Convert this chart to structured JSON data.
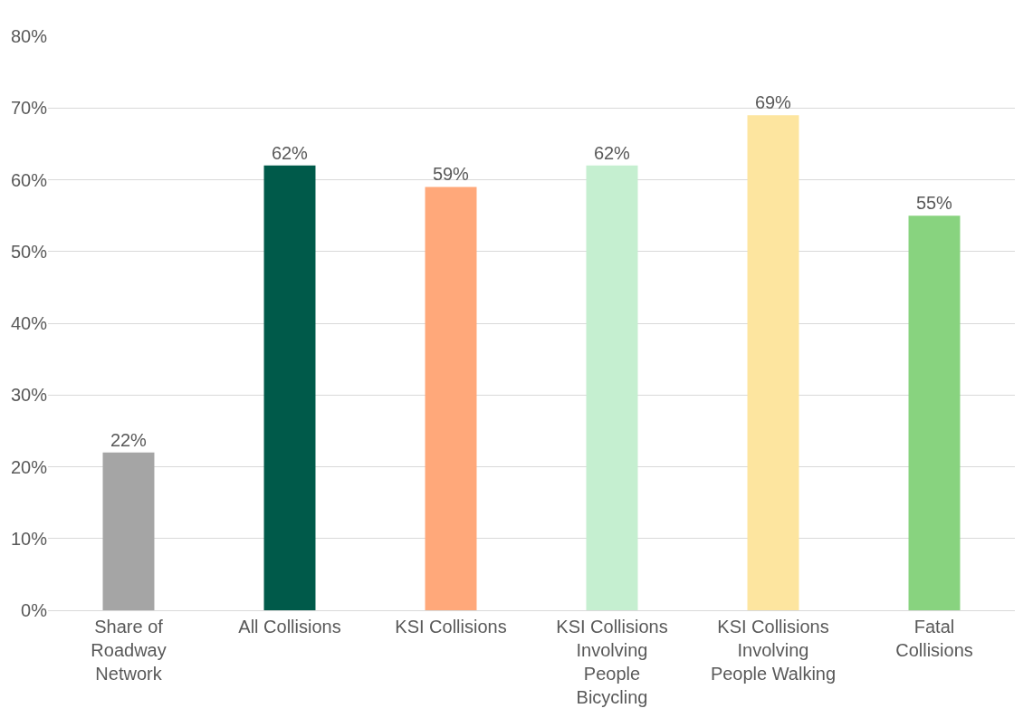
{
  "chart_data": {
    "type": "bar",
    "categories": [
      "Share of Roadway Network",
      "All Collisions",
      "KSI Collisions",
      "KSI Collisions Involving People Bicycling",
      "KSI Collisions Involving People Walking",
      "Fatal Collisions"
    ],
    "values": [
      22,
      62,
      59,
      62,
      69,
      55
    ],
    "value_labels": [
      "22%",
      "62%",
      "59%",
      "62%",
      "69%",
      "55%"
    ],
    "colors": [
      "#a5a5a5",
      "#005a4a",
      "#ffa87a",
      "#c5efd0",
      "#fde59f",
      "#88d37f"
    ],
    "ylim": [
      0,
      80
    ],
    "yticks": [
      {
        "value": 0,
        "label": "0%"
      },
      {
        "value": 10,
        "label": "10%"
      },
      {
        "value": 20,
        "label": "20%"
      },
      {
        "value": 30,
        "label": "30%"
      },
      {
        "value": 40,
        "label": "40%"
      },
      {
        "value": 50,
        "label": "50%"
      },
      {
        "value": 60,
        "label": "60%"
      },
      {
        "value": 70,
        "label": "70%"
      },
      {
        "value": 80,
        "label": "80%"
      }
    ],
    "grid": "y",
    "legend": false
  }
}
